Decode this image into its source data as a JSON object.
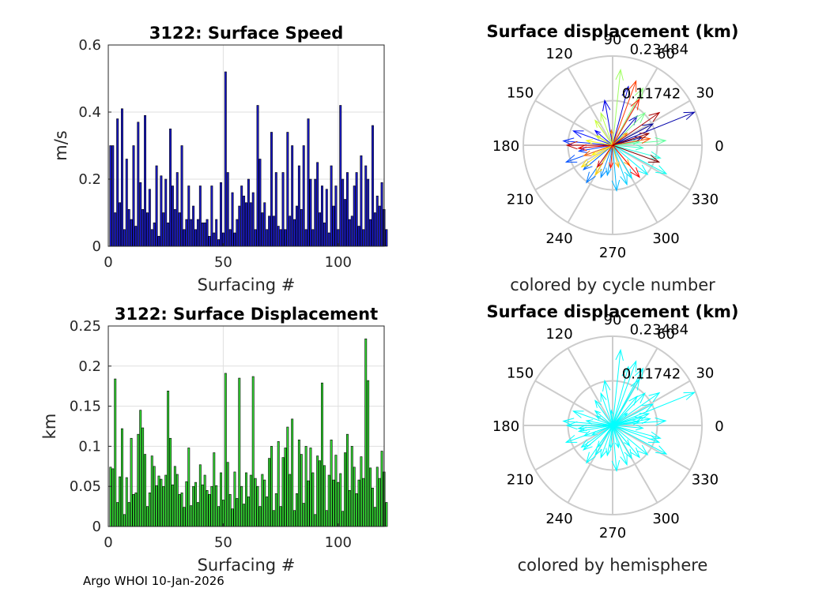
{
  "footer": "Argo WHOI 10-Jan-2026",
  "chart_data": [
    {
      "type": "bar",
      "title": "3122: Surface Speed",
      "xlabel": "Surfacing #",
      "ylabel": "m/s",
      "xlim": [
        0,
        120
      ],
      "ylim": [
        0,
        0.6
      ],
      "xticks": [
        "0",
        "50",
        "100"
      ],
      "yticks": [
        "0",
        "0.2",
        "0.4",
        "0.6"
      ],
      "grid": true,
      "bar_color": "#1a1acc",
      "values": [
        0.3,
        0.3,
        0.1,
        0.38,
        0.13,
        0.41,
        0.05,
        0.26,
        0.11,
        0.08,
        0.3,
        0.06,
        0.37,
        0.19,
        0.11,
        0.39,
        0.1,
        0.17,
        0.05,
        0.07,
        0.24,
        0.03,
        0.21,
        0.1,
        0.2,
        0.07,
        0.35,
        0.18,
        0.11,
        0.22,
        0.1,
        0.3,
        0.05,
        0.08,
        0.18,
        0.08,
        0.12,
        0.05,
        0.08,
        0.18,
        0.07,
        0.07,
        0.08,
        0.03,
        0.18,
        0.04,
        0.08,
        0.02,
        0.19,
        0.04,
        0.52,
        0.22,
        0.05,
        0.16,
        0.04,
        0.08,
        0.12,
        0.18,
        0.15,
        0.13,
        0.2,
        0.13,
        0.16,
        0.05,
        0.42,
        0.26,
        0.1,
        0.13,
        0.05,
        0.09,
        0.34,
        0.09,
        0.22,
        0.06,
        0.05,
        0.22,
        0.05,
        0.34,
        0.09,
        0.3,
        0.08,
        0.12,
        0.24,
        0.11,
        0.3,
        0.05,
        0.38,
        0.2,
        0.05,
        0.2,
        0.25,
        0.1,
        0.18,
        0.07,
        0.17,
        0.04,
        0.24,
        0.12,
        0.18,
        0.05,
        0.42,
        0.2,
        0.14,
        0.22,
        0.08,
        0.09,
        0.18,
        0.22,
        0.06,
        0.27,
        0.05,
        0.24,
        0.2,
        0.08,
        0.36,
        0.1,
        0.15,
        0.12,
        0.19,
        0.11,
        0.05
      ]
    },
    {
      "type": "bar",
      "title": "3122: Surface Displacement",
      "xlabel": "Surfacing #",
      "ylabel": "km",
      "xlim": [
        0,
        120
      ],
      "ylim": [
        0,
        0.25
      ],
      "xticks": [
        "0",
        "50",
        "100"
      ],
      "yticks": [
        "0",
        "0.05",
        "0.1",
        "0.15",
        "0.2",
        "0.25"
      ],
      "grid": true,
      "bar_color": "#33dd33",
      "values": [
        0.074,
        0.072,
        0.184,
        0.03,
        0.062,
        0.122,
        0.015,
        0.061,
        0.03,
        0.11,
        0.04,
        0.042,
        0.115,
        0.145,
        0.123,
        0.09,
        0.025,
        0.042,
        0.088,
        0.075,
        0.051,
        0.063,
        0.059,
        0.05,
        0.064,
        0.169,
        0.11,
        0.052,
        0.075,
        0.065,
        0.04,
        0.042,
        0.024,
        0.056,
        0.098,
        0.026,
        0.05,
        0.055,
        0.03,
        0.077,
        0.052,
        0.064,
        0.045,
        0.04,
        0.05,
        0.092,
        0.051,
        0.025,
        0.067,
        0.033,
        0.191,
        0.08,
        0.04,
        0.022,
        0.068,
        0.035,
        0.185,
        0.05,
        0.028,
        0.067,
        0.037,
        0.064,
        0.187,
        0.06,
        0.05,
        0.025,
        0.065,
        0.058,
        0.037,
        0.085,
        0.1,
        0.02,
        0.041,
        0.106,
        0.025,
        0.086,
        0.098,
        0.124,
        0.065,
        0.134,
        0.02,
        0.041,
        0.108,
        0.09,
        0.029,
        0.1,
        0.057,
        0.098,
        0.067,
        0.015,
        0.088,
        0.082,
        0.179,
        0.076,
        0.02,
        0.064,
        0.108,
        0.058,
        0.089,
        0.055,
        0.066,
        0.019,
        0.092,
        0.115,
        0.045,
        0.1,
        0.074,
        0.041,
        0.058,
        0.087,
        0.06,
        0.234,
        0.182,
        0.073,
        0.048,
        0.024,
        0.074,
        0.06,
        0.094,
        0.068,
        0.03
      ]
    },
    {
      "type": "polar",
      "title": "Surface displacement (km)",
      "caption": "colored by cycle number",
      "rmax": 0.23484,
      "rticks": [
        "0.11742",
        "0.23484"
      ],
      "theta_ticks": [
        "0",
        "30",
        "60",
        "90",
        "120",
        "150",
        "180",
        "210",
        "240",
        "270",
        "300",
        "330"
      ],
      "colormap": "jet",
      "arrows": [
        [
          0.08,
          15
        ],
        [
          0.12,
          28
        ],
        [
          0.232,
          22
        ],
        [
          0.1,
          50
        ],
        [
          0.16,
          75
        ],
        [
          0.12,
          100
        ],
        [
          0.06,
          140
        ],
        [
          0.11,
          160
        ],
        [
          0.13,
          175
        ],
        [
          0.09,
          190
        ],
        [
          0.13,
          200
        ],
        [
          0.1,
          220
        ],
        [
          0.12,
          235
        ],
        [
          0.09,
          250
        ],
        [
          0.08,
          260
        ],
        [
          0.12,
          275
        ],
        [
          0.11,
          290
        ],
        [
          0.1,
          300
        ],
        [
          0.12,
          320
        ],
        [
          0.16,
          332
        ],
        [
          0.13,
          345
        ],
        [
          0.08,
          355
        ],
        [
          0.07,
          8
        ],
        [
          0.14,
          5
        ],
        [
          0.12,
          45
        ],
        [
          0.17,
          62
        ],
        [
          0.2,
          84
        ],
        [
          0.09,
          110
        ],
        [
          0.08,
          125
        ],
        [
          0.05,
          150
        ],
        [
          0.07,
          170
        ],
        [
          0.06,
          205
        ],
        [
          0.1,
          215
        ],
        [
          0.09,
          240
        ],
        [
          0.06,
          285
        ],
        [
          0.07,
          310
        ],
        [
          0.05,
          40
        ],
        [
          0.04,
          95
        ],
        [
          0.08,
          200
        ],
        [
          0.1,
          10
        ],
        [
          0.18,
          70
        ],
        [
          0.14,
          60
        ],
        [
          0.06,
          265
        ],
        [
          0.11,
          310
        ],
        [
          0.09,
          185
        ],
        [
          0.07,
          235
        ],
        [
          0.12,
          180
        ],
        [
          0.15,
          35
        ],
        [
          0.1,
          18
        ],
        [
          0.13,
          340
        ]
      ]
    },
    {
      "type": "polar",
      "title": "Surface displacement (km)",
      "caption": "colored by hemisphere",
      "rmax": 0.23484,
      "rticks": [
        "0.11742",
        "0.23484"
      ],
      "theta_ticks": [
        "0",
        "30",
        "60",
        "90",
        "120",
        "150",
        "180",
        "210",
        "240",
        "270",
        "300",
        "330"
      ],
      "arrow_color": "#00ffff",
      "arrows": [
        [
          0.08,
          15
        ],
        [
          0.12,
          28
        ],
        [
          0.232,
          22
        ],
        [
          0.1,
          50
        ],
        [
          0.16,
          75
        ],
        [
          0.12,
          100
        ],
        [
          0.06,
          140
        ],
        [
          0.11,
          160
        ],
        [
          0.13,
          175
        ],
        [
          0.09,
          190
        ],
        [
          0.13,
          200
        ],
        [
          0.1,
          220
        ],
        [
          0.12,
          235
        ],
        [
          0.09,
          250
        ],
        [
          0.08,
          260
        ],
        [
          0.12,
          275
        ],
        [
          0.11,
          290
        ],
        [
          0.1,
          300
        ],
        [
          0.12,
          320
        ],
        [
          0.16,
          332
        ],
        [
          0.13,
          345
        ],
        [
          0.08,
          355
        ],
        [
          0.07,
          8
        ],
        [
          0.14,
          5
        ],
        [
          0.12,
          45
        ],
        [
          0.17,
          62
        ],
        [
          0.2,
          84
        ],
        [
          0.09,
          110
        ],
        [
          0.08,
          125
        ],
        [
          0.05,
          150
        ],
        [
          0.07,
          170
        ],
        [
          0.06,
          205
        ],
        [
          0.1,
          215
        ],
        [
          0.09,
          240
        ],
        [
          0.06,
          285
        ],
        [
          0.07,
          310
        ],
        [
          0.05,
          40
        ],
        [
          0.04,
          95
        ],
        [
          0.08,
          200
        ],
        [
          0.1,
          10
        ],
        [
          0.18,
          70
        ],
        [
          0.14,
          60
        ],
        [
          0.06,
          265
        ],
        [
          0.11,
          310
        ],
        [
          0.09,
          185
        ],
        [
          0.07,
          235
        ],
        [
          0.12,
          180
        ],
        [
          0.15,
          35
        ],
        [
          0.1,
          18
        ],
        [
          0.13,
          340
        ]
      ]
    }
  ]
}
